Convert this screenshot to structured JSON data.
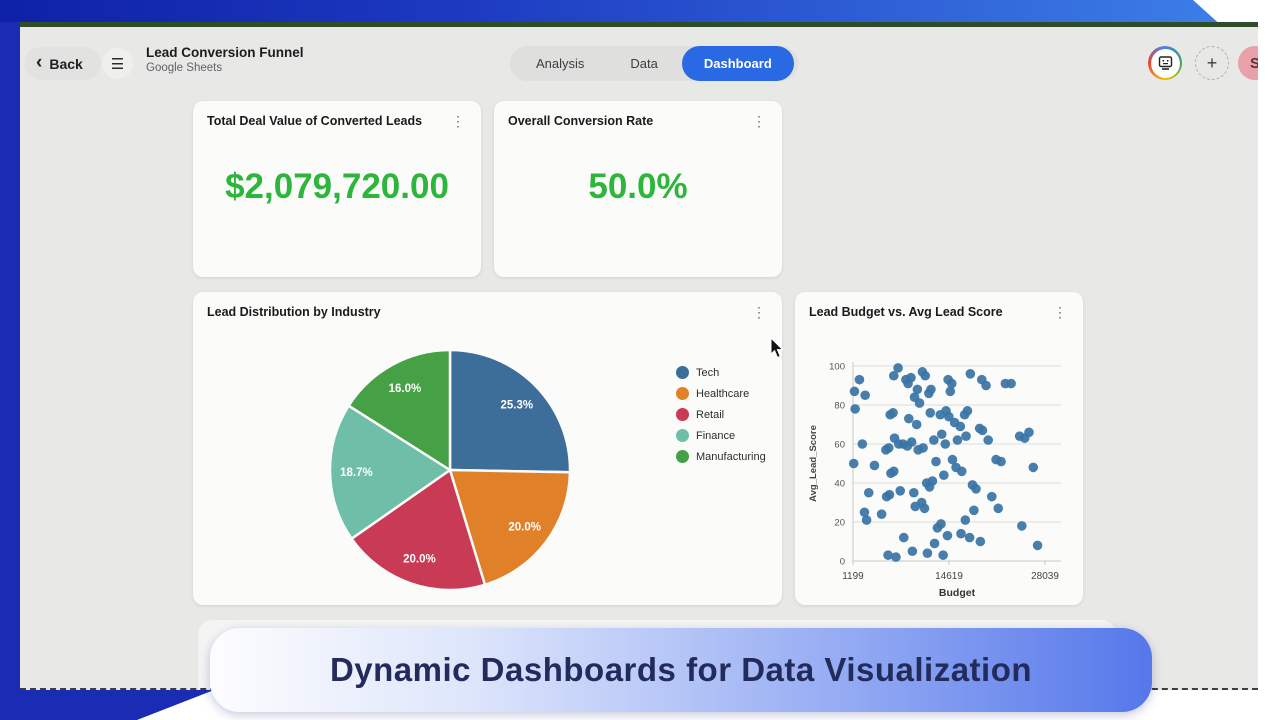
{
  "frame": {
    "top_bar_gradient": [
      "#0e21a6",
      "#3f83ea"
    ],
    "left_strip_color": "#1a2cb4",
    "accent_line_color": "#2e4d28"
  },
  "icons": {
    "back_chevron": "‹",
    "menu": "☰",
    "plus": "+",
    "kebab": "⋮"
  },
  "header": {
    "back_label": "Back",
    "title": "Lead Conversion Funnel",
    "subtitle": "Google Sheets",
    "tabs": [
      {
        "label": "Analysis",
        "active": false
      },
      {
        "label": "Data",
        "active": false
      },
      {
        "label": "Dashboard",
        "active": true
      }
    ],
    "active_tab_color": "#2969e3",
    "avatar_initial": "S"
  },
  "kpi_cards": [
    {
      "title": "Total Deal Value of Converted Leads",
      "value": "$2,079,720.00",
      "value_color": "#2db53c"
    },
    {
      "title": "Overall Conversion Rate",
      "value": "50.0%",
      "value_color": "#2db53c"
    }
  ],
  "chart_data": [
    {
      "type": "pie",
      "title": "Lead Distribution by Industry",
      "labels": [
        "Tech",
        "Healthcare",
        "Retail",
        "Finance",
        "Manufacturing"
      ],
      "values": [
        25.3,
        20.0,
        20.0,
        18.7,
        16.0
      ],
      "value_labels": [
        "25.3%",
        "20.0%",
        "20.0%",
        "18.7%",
        "16.0%"
      ],
      "colors": [
        "#3d6d99",
        "#e0812a",
        "#c93a54",
        "#6fbfa8",
        "#46a045"
      ],
      "start_angle_deg": 0,
      "direction": "clockwise",
      "legend_position": "right"
    },
    {
      "type": "scatter",
      "title": "Lead Budget vs. Avg Lead Score",
      "xlabel": "Budget",
      "ylabel": "Avg_Lead_Score",
      "xlim": [
        1199,
        28039
      ],
      "ylim": [
        0,
        100
      ],
      "x_ticks": [
        1199,
        14619,
        28039
      ],
      "y_ticks": [
        0,
        20,
        40,
        60,
        80,
        100
      ],
      "grid": "horizontal",
      "point_color": "#3a74a6",
      "points": [
        [
          1400,
          87
        ],
        [
          2100,
          93
        ],
        [
          2900,
          85
        ],
        [
          1500,
          78
        ],
        [
          6900,
          95
        ],
        [
          7500,
          99
        ],
        [
          8600,
          93
        ],
        [
          9300,
          94
        ],
        [
          8900,
          91
        ],
        [
          10200,
          88
        ],
        [
          9800,
          84
        ],
        [
          10900,
          97
        ],
        [
          11300,
          95
        ],
        [
          10500,
          81
        ],
        [
          11800,
          86
        ],
        [
          12100,
          88
        ],
        [
          14500,
          93
        ],
        [
          15000,
          91
        ],
        [
          14800,
          87
        ],
        [
          17600,
          96
        ],
        [
          19200,
          93
        ],
        [
          19800,
          90
        ],
        [
          22500,
          91
        ],
        [
          23300,
          91
        ],
        [
          6400,
          75
        ],
        [
          6800,
          76
        ],
        [
          9000,
          73
        ],
        [
          10100,
          70
        ],
        [
          12000,
          76
        ],
        [
          13400,
          75
        ],
        [
          14200,
          77
        ],
        [
          14600,
          74
        ],
        [
          16800,
          75
        ],
        [
          17200,
          77
        ],
        [
          15400,
          71
        ],
        [
          16200,
          69
        ],
        [
          18900,
          68
        ],
        [
          19300,
          67
        ],
        [
          2500,
          60
        ],
        [
          5800,
          57
        ],
        [
          6200,
          58
        ],
        [
          7000,
          63
        ],
        [
          7600,
          60
        ],
        [
          8200,
          60
        ],
        [
          8800,
          59
        ],
        [
          9400,
          61
        ],
        [
          10300,
          57
        ],
        [
          11000,
          58
        ],
        [
          12500,
          62
        ],
        [
          13600,
          65
        ],
        [
          14100,
          60
        ],
        [
          15800,
          62
        ],
        [
          17000,
          64
        ],
        [
          20100,
          62
        ],
        [
          24500,
          64
        ],
        [
          25200,
          63
        ],
        [
          25800,
          66
        ],
        [
          1300,
          50
        ],
        [
          4200,
          49
        ],
        [
          6500,
          45
        ],
        [
          6900,
          46
        ],
        [
          12800,
          51
        ],
        [
          13900,
          44
        ],
        [
          15100,
          52
        ],
        [
          15600,
          48
        ],
        [
          16400,
          46
        ],
        [
          21200,
          52
        ],
        [
          21900,
          51
        ],
        [
          26400,
          48
        ],
        [
          3400,
          35
        ],
        [
          5900,
          33
        ],
        [
          6300,
          34
        ],
        [
          7800,
          36
        ],
        [
          9700,
          35
        ],
        [
          11500,
          40
        ],
        [
          11900,
          38
        ],
        [
          12300,
          41
        ],
        [
          10800,
          30
        ],
        [
          11200,
          27
        ],
        [
          17900,
          39
        ],
        [
          18400,
          37
        ],
        [
          20600,
          33
        ],
        [
          2800,
          25
        ],
        [
          3100,
          21
        ],
        [
          5200,
          24
        ],
        [
          9900,
          28
        ],
        [
          13000,
          17
        ],
        [
          13500,
          19
        ],
        [
          16900,
          21
        ],
        [
          18100,
          26
        ],
        [
          21500,
          27
        ],
        [
          24800,
          18
        ],
        [
          8300,
          12
        ],
        [
          12600,
          9
        ],
        [
          14400,
          13
        ],
        [
          16300,
          14
        ],
        [
          17500,
          12
        ],
        [
          19000,
          10
        ],
        [
          6100,
          3
        ],
        [
          7200,
          2
        ],
        [
          9500,
          5
        ],
        [
          11600,
          4
        ],
        [
          13800,
          3
        ],
        [
          27000,
          8
        ]
      ]
    }
  ],
  "caption_banner": {
    "text": "Dynamic Dashboards for Data Visualization",
    "text_color": "#232a5c"
  }
}
